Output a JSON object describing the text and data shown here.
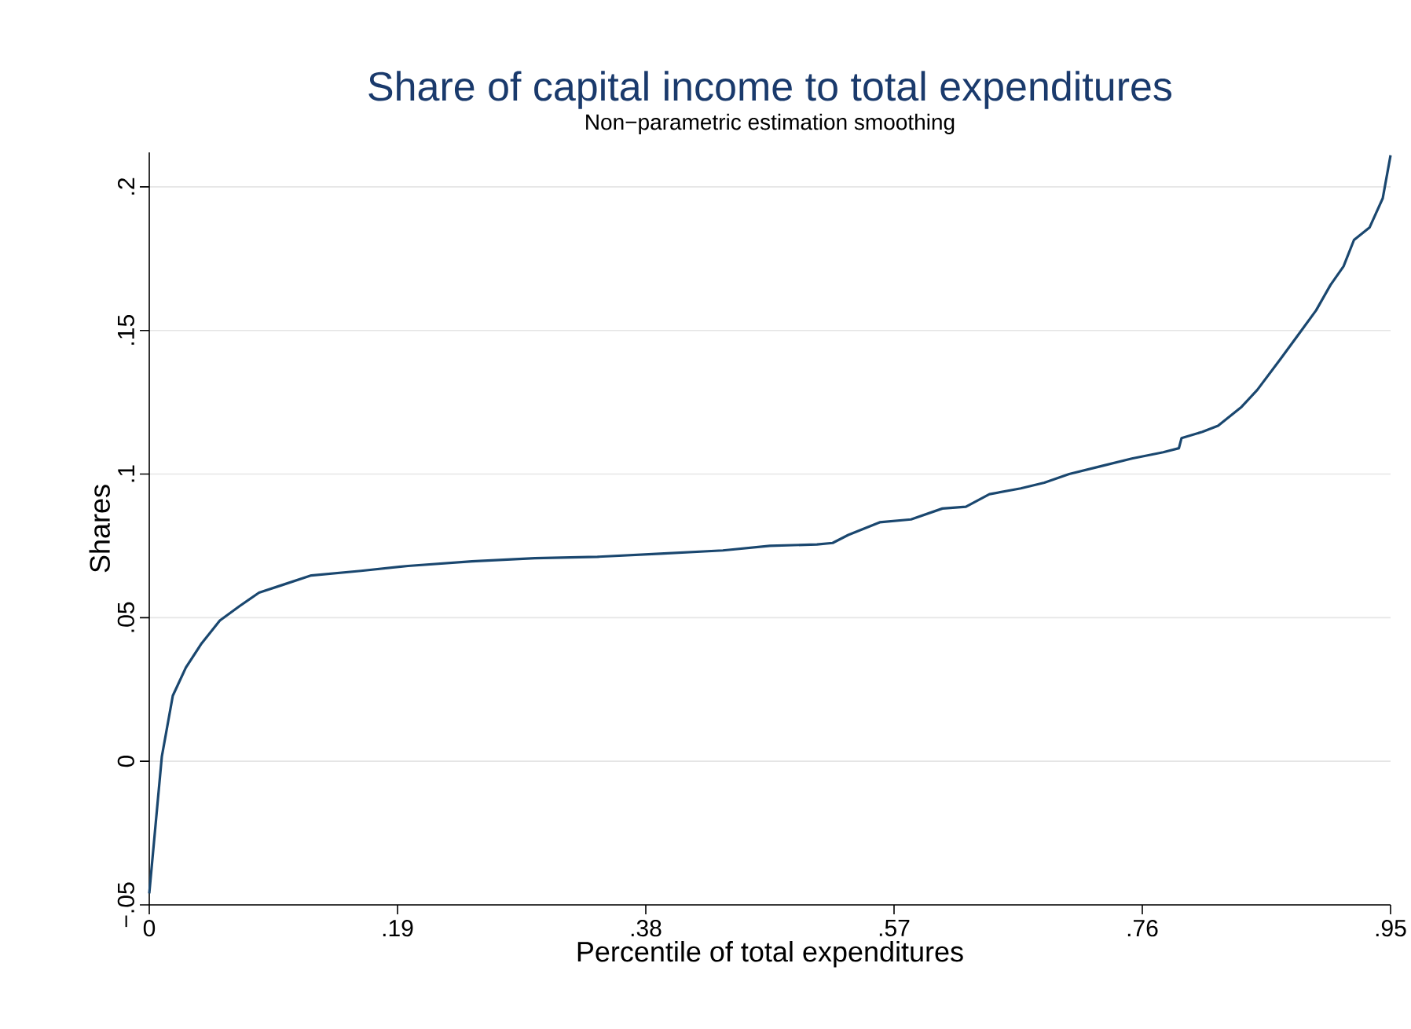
{
  "chart_data": {
    "type": "line",
    "title": "Share of capital income to total expenditures",
    "subtitle": "Non−parametric estimation smoothing",
    "xlabel": "Percentile of total expenditures",
    "ylabel": "Shares",
    "xlim": [
      0,
      0.95
    ],
    "ylim": [
      -0.05,
      0.212
    ],
    "xticks": [
      {
        "value": 0,
        "label": "0"
      },
      {
        "value": 0.19,
        "label": ".19"
      },
      {
        "value": 0.38,
        "label": ".38"
      },
      {
        "value": 0.57,
        "label": ".57"
      },
      {
        "value": 0.76,
        "label": ".76"
      },
      {
        "value": 0.95,
        "label": ".95"
      }
    ],
    "yticks": [
      {
        "value": -0.05,
        "label": "−.05"
      },
      {
        "value": 0,
        "label": "0"
      },
      {
        "value": 0.05,
        "label": ".05"
      },
      {
        "value": 0.1,
        "label": ".1"
      },
      {
        "value": 0.15,
        "label": ".15"
      },
      {
        "value": 0.2,
        "label": ".2"
      }
    ],
    "grid": "y",
    "marker": "none",
    "line_style": "solid",
    "series": [
      {
        "color": "#1a476f",
        "x": [
          0,
          0.0096,
          0.018,
          0.028,
          0.04,
          0.054,
          0.069,
          0.084,
          0.102,
          0.124,
          0.162,
          0.198,
          0.247,
          0.295,
          0.343,
          0.391,
          0.439,
          0.475,
          0.511,
          0.523,
          0.535,
          0.559,
          0.583,
          0.607,
          0.625,
          0.643,
          0.667,
          0.685,
          0.704,
          0.728,
          0.752,
          0.776,
          0.788,
          0.79,
          0.806,
          0.818,
          0.836,
          0.848,
          0.866,
          0.881,
          0.893,
          0.904,
          0.914,
          0.922,
          0.934,
          0.944,
          0.95
        ],
        "values": [
          -0.046,
          0.0016,
          0.0228,
          0.0326,
          0.041,
          0.049,
          0.054,
          0.0587,
          0.0614,
          0.0647,
          0.0663,
          0.068,
          0.0696,
          0.0707,
          0.0712,
          0.0723,
          0.0734,
          0.075,
          0.0755,
          0.076,
          0.0788,
          0.0832,
          0.0842,
          0.088,
          0.0886,
          0.093,
          0.095,
          0.097,
          0.1,
          0.1027,
          0.1054,
          0.1076,
          0.109,
          0.1125,
          0.1147,
          0.1168,
          0.1234,
          0.1293,
          0.1402,
          0.1495,
          0.157,
          0.1658,
          0.1723,
          0.1815,
          0.1859,
          0.196,
          0.211
        ]
      }
    ]
  }
}
